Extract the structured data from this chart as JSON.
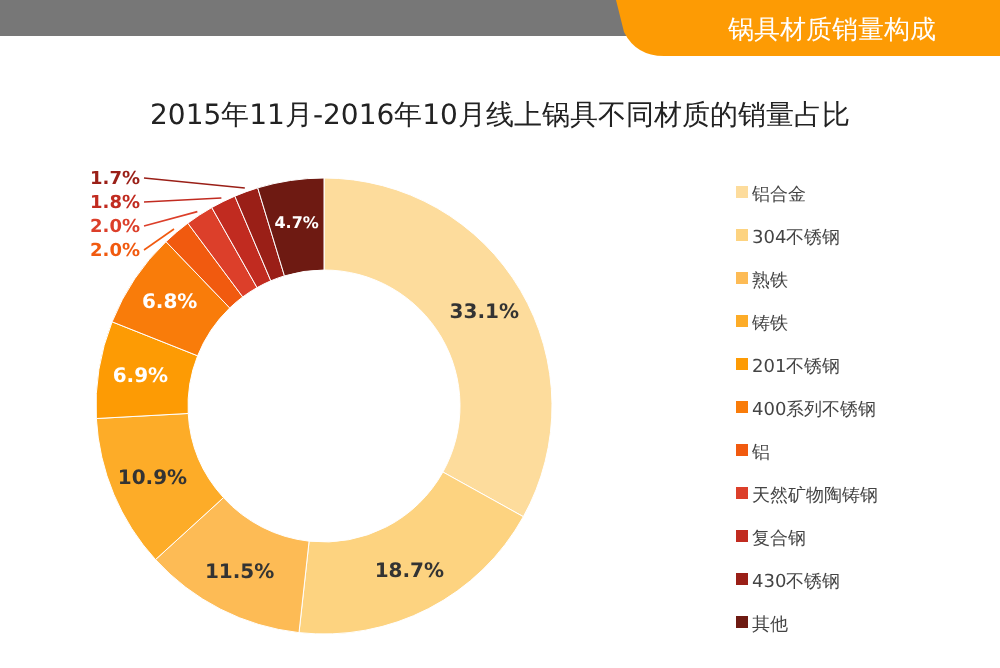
{
  "chart_data": {
    "type": "donut",
    "title": "2015年11月-2016年10月线上锅具不同材质的销量占比",
    "subtitle": "锅具材质销量构成",
    "categories": [
      "铝合金",
      "304不锈钢",
      "熟铁",
      "铸铁",
      "201不锈钢",
      "400系列不锈钢",
      "铝",
      "天然矿物陶铸钢",
      "复合钢",
      "430不锈钢",
      "其他"
    ],
    "values": [
      33.1,
      18.7,
      11.5,
      10.9,
      6.9,
      6.8,
      2.0,
      2.0,
      1.8,
      1.7,
      4.7
    ],
    "colors": [
      "#fddc9c",
      "#fdd380",
      "#fdbb55",
      "#fdac28",
      "#fd9b04",
      "#f97c0a",
      "#f15a0f",
      "#dc3f2a",
      "#c12b20",
      "#9a1f17",
      "#6e1a12"
    ],
    "value_labels": [
      "33.1%",
      "18.7%",
      "11.5%",
      "10.9%",
      "6.9%",
      "6.8%",
      "2.0%",
      "2.0%",
      "1.8%",
      "1.7%",
      "4.7%"
    ],
    "legend": "right"
  }
}
